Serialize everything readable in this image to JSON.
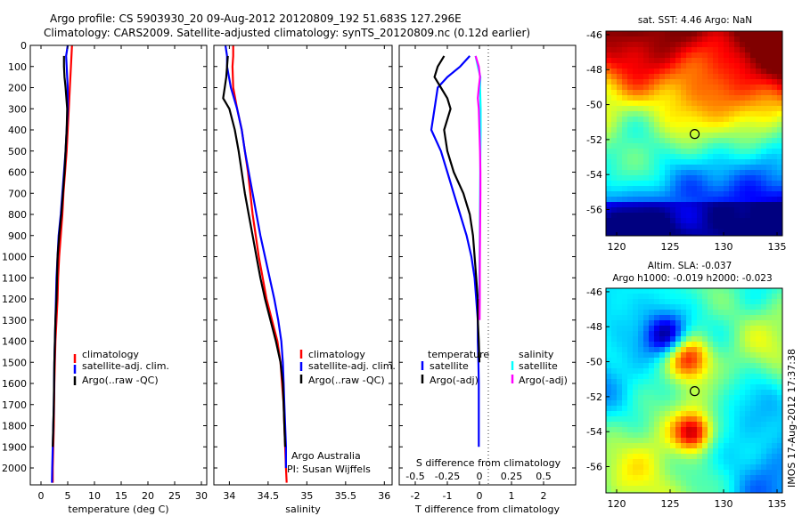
{
  "header": {
    "line1": "Argo profile: CS 5903930_20 09-Aug-2012 20120809_192 51.683S 127.296E",
    "line2": "Climatology: CARS2009. Satellite-adjusted climatology: synTS_20120809.nc (0.12d earlier)"
  },
  "colors": {
    "climatology": "#ff0000",
    "satellite": "#0000ff",
    "argo": "#000000",
    "satellite_salinity": "#00ffff",
    "argo_adj_salinity": "#ff00ff"
  },
  "chart_data": [
    {
      "type": "line",
      "panel": "temperature",
      "xlabel": "temperature (deg C)",
      "xlim": [
        -2,
        31
      ],
      "xticks": [
        0,
        5,
        10,
        15,
        20,
        25,
        30
      ],
      "ylim": [
        2080,
        0
      ],
      "yticks": [
        0,
        100,
        200,
        300,
        400,
        500,
        600,
        700,
        800,
        900,
        1000,
        1100,
        1200,
        1300,
        1400,
        1500,
        1600,
        1700,
        1800,
        1900,
        2000
      ],
      "legend": [
        "climatology",
        "satellite-adj. clim.",
        "Argo(..raw -QC)"
      ],
      "series": [
        {
          "key": "climatology",
          "color": "#ff0000",
          "x": [
            5.8,
            5.7,
            5.6,
            5.4,
            5.2,
            5.0,
            4.8,
            4.5,
            4.2,
            4.0,
            3.7,
            3.4,
            3.2,
            3.1,
            2.9,
            2.7,
            2.6,
            2.5,
            2.45,
            2.4,
            2.3,
            2.2,
            2.2
          ],
          "y": [
            0,
            50,
            100,
            200,
            300,
            400,
            500,
            600,
            700,
            800,
            900,
            1000,
            1100,
            1200,
            1300,
            1400,
            1500,
            1600,
            1700,
            1800,
            1900,
            2000,
            2070
          ]
        },
        {
          "key": "satellite",
          "color": "#0000ff",
          "x": [
            5.0,
            4.7,
            4.8,
            5.0,
            5.0,
            4.8,
            4.6,
            4.3,
            4.0,
            3.7,
            3.3,
            3.1,
            2.9,
            2.8,
            2.7,
            2.6,
            2.5,
            2.45,
            2.4,
            2.3,
            2.2,
            2.1,
            2.05
          ],
          "y": [
            0,
            50,
            100,
            200,
            300,
            400,
            500,
            600,
            700,
            800,
            900,
            1000,
            1100,
            1200,
            1300,
            1400,
            1500,
            1600,
            1700,
            1800,
            1900,
            2000,
            2070
          ]
        },
        {
          "key": "argo",
          "color": "#000000",
          "x": [
            4.3,
            4.3,
            4.4,
            4.6,
            4.9,
            4.8,
            4.6,
            4.4,
            4.1,
            3.8,
            3.4,
            3.1,
            3.0,
            2.9,
            2.7,
            2.6,
            2.5,
            2.45,
            2.4,
            2.3,
            2.2
          ],
          "y": [
            50,
            100,
            150,
            200,
            300,
            400,
            500,
            600,
            700,
            800,
            900,
            1000,
            1100,
            1200,
            1300,
            1400,
            1500,
            1600,
            1700,
            1800,
            1900
          ]
        }
      ]
    },
    {
      "type": "line",
      "panel": "salinity",
      "xlabel": "salinity",
      "xlim": [
        33.8,
        36.1
      ],
      "xticks": [
        34,
        34.5,
        35,
        35.5,
        36
      ],
      "ylim": [
        2080,
        0
      ],
      "legend": [
        "climatology",
        "satellite-adj. clim.",
        "Argo(..raw -QC)"
      ],
      "annotation": [
        "Argo Australia",
        "PI: Susan Wijffels"
      ],
      "series": [
        {
          "key": "climatology",
          "color": "#ff0000",
          "x": [
            34.05,
            34.05,
            34.04,
            34.05,
            34.1,
            34.16,
            34.2,
            34.24,
            34.27,
            34.3,
            34.34,
            34.38,
            34.43,
            34.48,
            34.55,
            34.62,
            34.66,
            34.68,
            34.7,
            34.71,
            34.72,
            34.73,
            34.74
          ],
          "y": [
            0,
            50,
            100,
            200,
            300,
            400,
            500,
            600,
            700,
            800,
            900,
            1000,
            1100,
            1200,
            1300,
            1400,
            1500,
            1600,
            1700,
            1800,
            1900,
            2000,
            2070
          ]
        },
        {
          "key": "satellite",
          "color": "#0000ff",
          "x": [
            33.95,
            33.97,
            33.97,
            34.02,
            34.1,
            34.16,
            34.2,
            34.25,
            34.3,
            34.35,
            34.4,
            34.46,
            34.52,
            34.58,
            34.63,
            34.67,
            34.69,
            34.7,
            34.71,
            34.72,
            34.73,
            34.73
          ],
          "y": [
            0,
            50,
            100,
            200,
            300,
            400,
            500,
            600,
            700,
            800,
            900,
            1000,
            1100,
            1200,
            1300,
            1400,
            1500,
            1600,
            1700,
            1800,
            1900,
            2000
          ]
        },
        {
          "key": "argo",
          "color": "#000000",
          "x": [
            33.98,
            33.97,
            33.96,
            33.94,
            33.92,
            34.0,
            34.07,
            34.12,
            34.16,
            34.2,
            34.25,
            34.3,
            34.35,
            34.4,
            34.46,
            34.53,
            34.6,
            34.66,
            34.69,
            34.7,
            34.71,
            34.72
          ],
          "y": [
            50,
            100,
            150,
            200,
            250,
            300,
            400,
            500,
            600,
            700,
            800,
            900,
            1000,
            1100,
            1200,
            1300,
            1400,
            1500,
            1600,
            1700,
            1800,
            1900
          ]
        }
      ]
    },
    {
      "type": "line",
      "panel": "difference",
      "xlabel": "T difference from climatology",
      "xlabel_top": "S difference from climatology",
      "xlim": [
        -2.5,
        3.0
      ],
      "xticks": [
        -2,
        -1,
        0,
        1,
        2
      ],
      "xticks_top": [
        -0.5,
        -0.25,
        0,
        0.25,
        0.5
      ],
      "ylim": [
        2080,
        0
      ],
      "legend_temperature": [
        "temperature",
        "satellite",
        "Argo(-adj)"
      ],
      "legend_salinity": [
        "salinity",
        "satellite",
        "Argo(-adj)"
      ],
      "series": [
        {
          "key": "T_satellite",
          "color": "#0000ff",
          "x": [
            -0.3,
            -0.6,
            -1.0,
            -1.3,
            -1.4,
            -1.5,
            -1.2,
            -1.0,
            -0.8,
            -0.6,
            -0.4,
            -0.25,
            -0.15,
            -0.1,
            -0.05,
            -0.05,
            -0.03,
            -0.02,
            -0.02,
            -0.02,
            -0.02
          ],
          "y": [
            50,
            100,
            150,
            200,
            300,
            400,
            500,
            600,
            700,
            800,
            900,
            1000,
            1100,
            1200,
            1300,
            1400,
            1500,
            1600,
            1700,
            1800,
            1900
          ]
        },
        {
          "key": "T_argo",
          "color": "#000000",
          "x": [
            -1.1,
            -1.3,
            -1.4,
            -1.2,
            -1.0,
            -0.9,
            -1.1,
            -1.0,
            -0.8,
            -0.5,
            -0.3,
            -0.2,
            -0.15,
            -0.1,
            -0.05,
            -0.05,
            -0.02,
            0.0
          ],
          "y": [
            50,
            100,
            150,
            200,
            250,
            300,
            400,
            500,
            600,
            700,
            800,
            900,
            1000,
            1100,
            1200,
            1300,
            1400,
            1500
          ]
        },
        {
          "key": "S_satellite",
          "color": "#00ffff",
          "x": [
            -0.12,
            -0.05,
            0.03,
            0.02,
            0.04,
            0.04,
            0.03,
            0.025,
            0.02,
            0.015,
            0.01,
            0.005,
            0.0,
            0.0
          ],
          "y": [
            50,
            100,
            150,
            200,
            300,
            400,
            500,
            600,
            700,
            800,
            900,
            1000,
            1100,
            1200
          ]
        },
        {
          "key": "S_argo_adj",
          "color": "#ff00ff",
          "x": [
            -0.12,
            -0.02,
            0.02,
            -0.02,
            -0.05,
            -0.02,
            0.0,
            0.02,
            0.03,
            0.03,
            0.025,
            0.02,
            0.015,
            0.01,
            0.01,
            0.005
          ],
          "y": [
            50,
            100,
            150,
            200,
            250,
            300,
            400,
            500,
            600,
            700,
            800,
            900,
            1000,
            1100,
            1200,
            1300
          ]
        }
      ]
    },
    {
      "type": "heatmap",
      "panel": "sst_map",
      "title": "sat. SST: 4.46 Argo: NaN",
      "xlim": [
        119,
        135.5
      ],
      "ylim": [
        -57.5,
        -45.8
      ],
      "xticks": [
        120,
        125,
        130,
        135
      ],
      "yticks": [
        -46,
        -48,
        -50,
        -52,
        -54,
        -56
      ],
      "marker": {
        "lon": 127.296,
        "lat": -51.683
      }
    },
    {
      "type": "heatmap",
      "panel": "sla_map",
      "title": "Altim. SLA: -0.037",
      "subtitle": "Argo h1000: -0.019 h2000: -0.023",
      "xlim": [
        119,
        135.5
      ],
      "ylim": [
        -57.5,
        -45.8
      ],
      "xticks": [
        120,
        125,
        130,
        135
      ],
      "yticks": [
        -46,
        -48,
        -50,
        -52,
        -54,
        -56
      ],
      "marker": {
        "lon": 127.296,
        "lat": -51.683
      }
    }
  ],
  "side_label": "IMOS 17-Aug-2012 17:37:38"
}
